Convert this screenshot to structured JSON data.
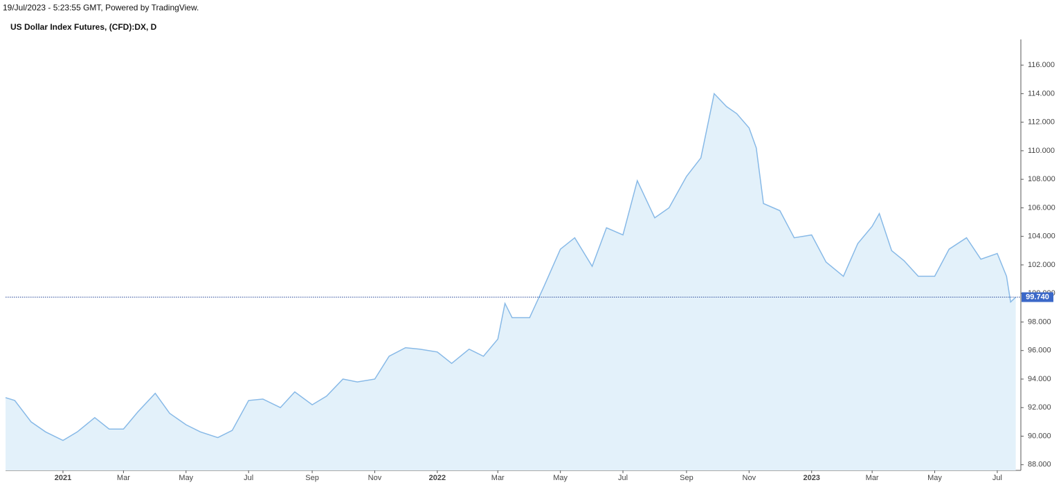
{
  "chart_data": {
    "type": "area",
    "header": "19/Jul/2023 - 5:23:55 GMT, Powered by TradingView.",
    "title": "US Dollar Index Futures, (CFD):DX, D",
    "x": [
      "2020-11-06",
      "2020-11-15",
      "2020-12-01",
      "2020-12-15",
      "2021-01-01",
      "2021-01-15",
      "2021-02-01",
      "2021-02-15",
      "2021-03-01",
      "2021-03-15",
      "2021-04-01",
      "2021-04-15",
      "2021-05-01",
      "2021-05-15",
      "2021-06-01",
      "2021-06-15",
      "2021-07-01",
      "2021-07-15",
      "2021-08-01",
      "2021-08-15",
      "2021-09-01",
      "2021-09-15",
      "2021-10-01",
      "2021-10-15",
      "2021-11-01",
      "2021-11-15",
      "2021-12-01",
      "2021-12-15",
      "2022-01-01",
      "2022-01-15",
      "2022-02-01",
      "2022-02-15",
      "2022-03-01",
      "2022-03-08",
      "2022-03-15",
      "2022-04-01",
      "2022-04-15",
      "2022-05-01",
      "2022-05-15",
      "2022-06-01",
      "2022-06-15",
      "2022-07-01",
      "2022-07-15",
      "2022-08-01",
      "2022-08-15",
      "2022-09-01",
      "2022-09-15",
      "2022-09-28",
      "2022-10-10",
      "2022-10-20",
      "2022-11-01",
      "2022-11-08",
      "2022-11-15",
      "2022-12-01",
      "2022-12-15",
      "2023-01-01",
      "2023-01-15",
      "2023-02-01",
      "2023-02-15",
      "2023-03-01",
      "2023-03-08",
      "2023-03-20",
      "2023-04-01",
      "2023-04-15",
      "2023-05-01",
      "2023-05-15",
      "2023-06-01",
      "2023-06-15",
      "2023-07-01",
      "2023-07-10",
      "2023-07-14",
      "2023-07-19"
    ],
    "series": [
      {
        "name": "DX",
        "color": "#87b9e7",
        "fill": "#e3f1fa",
        "values": [
          92.7,
          92.5,
          91.0,
          90.3,
          89.7,
          90.3,
          91.3,
          90.5,
          90.5,
          91.7,
          93.0,
          91.6,
          90.8,
          90.3,
          89.9,
          90.4,
          92.5,
          92.6,
          92.0,
          93.1,
          92.2,
          92.8,
          94.0,
          93.8,
          94.0,
          95.6,
          96.2,
          96.1,
          95.9,
          95.1,
          96.1,
          95.6,
          96.8,
          99.3,
          98.3,
          98.3,
          100.5,
          103.1,
          103.9,
          101.9,
          104.6,
          104.1,
          107.9,
          105.3,
          106.0,
          108.2,
          109.5,
          114.0,
          113.1,
          112.6,
          111.6,
          110.2,
          106.3,
          105.8,
          103.9,
          104.1,
          102.2,
          101.2,
          103.5,
          104.7,
          105.6,
          103.0,
          102.3,
          101.2,
          101.2,
          103.1,
          103.9,
          102.4,
          102.8,
          101.2,
          99.4,
          99.74
        ]
      }
    ],
    "price_line": {
      "value": 99.74,
      "label": "99.740",
      "color": "#3b68c8"
    },
    "xlim": [
      "2020-11-06",
      "2023-07-24"
    ],
    "xticks": [
      {
        "value": "2021-01-01",
        "label": "2021"
      },
      {
        "value": "2021-03-01",
        "label": "Mar"
      },
      {
        "value": "2021-05-01",
        "label": "May"
      },
      {
        "value": "2021-07-01",
        "label": "Jul"
      },
      {
        "value": "2021-09-01",
        "label": "Sep"
      },
      {
        "value": "2021-11-01",
        "label": "Nov"
      },
      {
        "value": "2022-01-01",
        "label": "2022"
      },
      {
        "value": "2022-03-01",
        "label": "Mar"
      },
      {
        "value": "2022-05-01",
        "label": "May"
      },
      {
        "value": "2022-07-01",
        "label": "Jul"
      },
      {
        "value": "2022-09-01",
        "label": "Sep"
      },
      {
        "value": "2022-11-01",
        "label": "Nov"
      },
      {
        "value": "2023-01-01",
        "label": "2023"
      },
      {
        "value": "2023-03-01",
        "label": "Mar"
      },
      {
        "value": "2023-05-01",
        "label": "May"
      },
      {
        "value": "2023-07-01",
        "label": "Jul"
      }
    ],
    "ylim": [
      87.6,
      117.8
    ],
    "yticks": [
      {
        "value": 88,
        "label": "88.000"
      },
      {
        "value": 90,
        "label": "90.000"
      },
      {
        "value": 92,
        "label": "92.000"
      },
      {
        "value": 94,
        "label": "94.000"
      },
      {
        "value": 96,
        "label": "96.000"
      },
      {
        "value": 98,
        "label": "98.000"
      },
      {
        "value": 100,
        "label": "100.000"
      },
      {
        "value": 102,
        "label": "102.000"
      },
      {
        "value": 104,
        "label": "104.000"
      },
      {
        "value": 106,
        "label": "106.000"
      },
      {
        "value": 108,
        "label": "108.000"
      },
      {
        "value": 110,
        "label": "110.000"
      },
      {
        "value": 112,
        "label": "112.000"
      },
      {
        "value": 114,
        "label": "114.000"
      },
      {
        "value": 116,
        "label": "116.000"
      }
    ],
    "y_axis_side": "right"
  }
}
